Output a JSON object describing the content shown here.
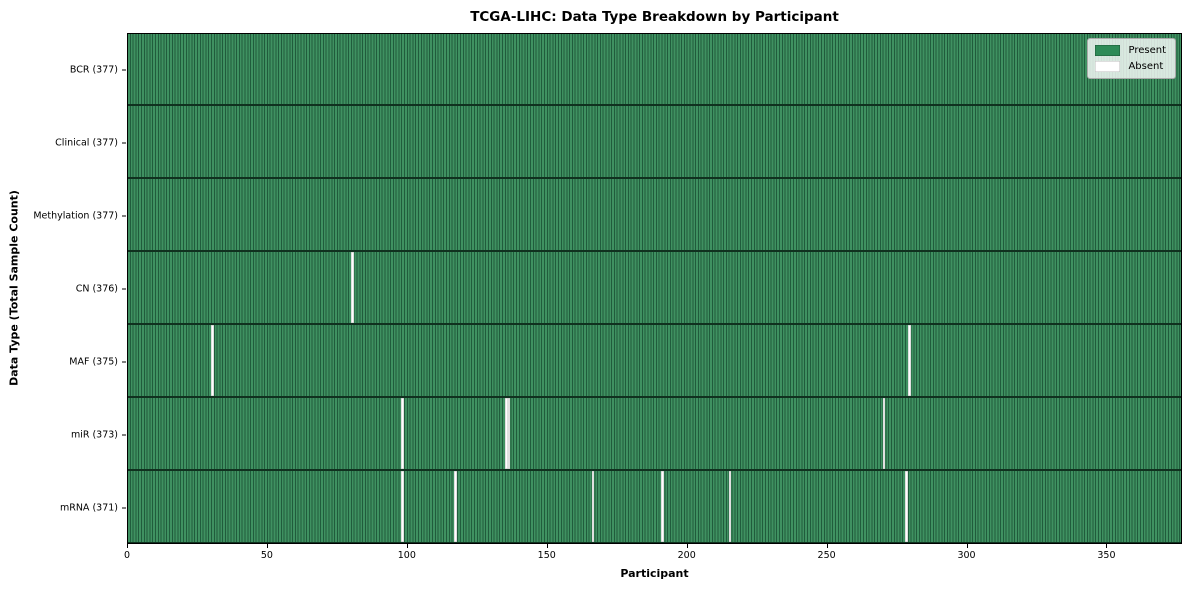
{
  "title": "TCGA-LIHC: Data Type Breakdown by Participant",
  "xlabel": "Participant",
  "ylabel": "Data Type (Total Sample Count)",
  "legend": {
    "present_label": "Present",
    "absent_label": "Absent"
  },
  "colors": {
    "present": "#2e8b57",
    "present_stripe_light": "#3f9161",
    "present_stripe_dark": "#205c3c",
    "absent": "#ffffff",
    "row_separator": "#10311f",
    "axis": "#000000",
    "legend_border": "#aaaaaa"
  },
  "x_ticks": [
    0,
    50,
    100,
    150,
    200,
    250,
    300,
    350
  ],
  "chart_data": {
    "type": "heatmap",
    "title": "TCGA-LIHC: Data Type Breakdown by Participant",
    "xlabel": "Participant",
    "ylabel": "Data Type (Total Sample Count)",
    "x_range": [
      0,
      377
    ],
    "total_participants": 377,
    "legend_entries": [
      "Present",
      "Absent"
    ],
    "legend_position": "upper right",
    "grid": false,
    "rows": [
      {
        "name": "BCR",
        "label": "BCR (377)",
        "present_count": 377,
        "absent_count": 0,
        "absent_participants": []
      },
      {
        "name": "Clinical",
        "label": "Clinical (377)",
        "present_count": 377,
        "absent_count": 0,
        "absent_participants": []
      },
      {
        "name": "Methylation",
        "label": "Methylation (377)",
        "present_count": 377,
        "absent_count": 0,
        "absent_participants": []
      },
      {
        "name": "CN",
        "label": "CN (376)",
        "present_count": 376,
        "absent_count": 1,
        "absent_participants": [
          80
        ]
      },
      {
        "name": "MAF",
        "label": "MAF (375)",
        "present_count": 375,
        "absent_count": 2,
        "absent_participants": [
          30,
          279
        ]
      },
      {
        "name": "miR",
        "label": "miR (373)",
        "present_count": 373,
        "absent_count": 4,
        "absent_participants": [
          98,
          135,
          136,
          270
        ]
      },
      {
        "name": "mRNA",
        "label": "mRNA (371)",
        "present_count": 371,
        "absent_count": 6,
        "absent_participants": [
          98,
          117,
          166,
          191,
          215,
          278
        ]
      }
    ]
  }
}
